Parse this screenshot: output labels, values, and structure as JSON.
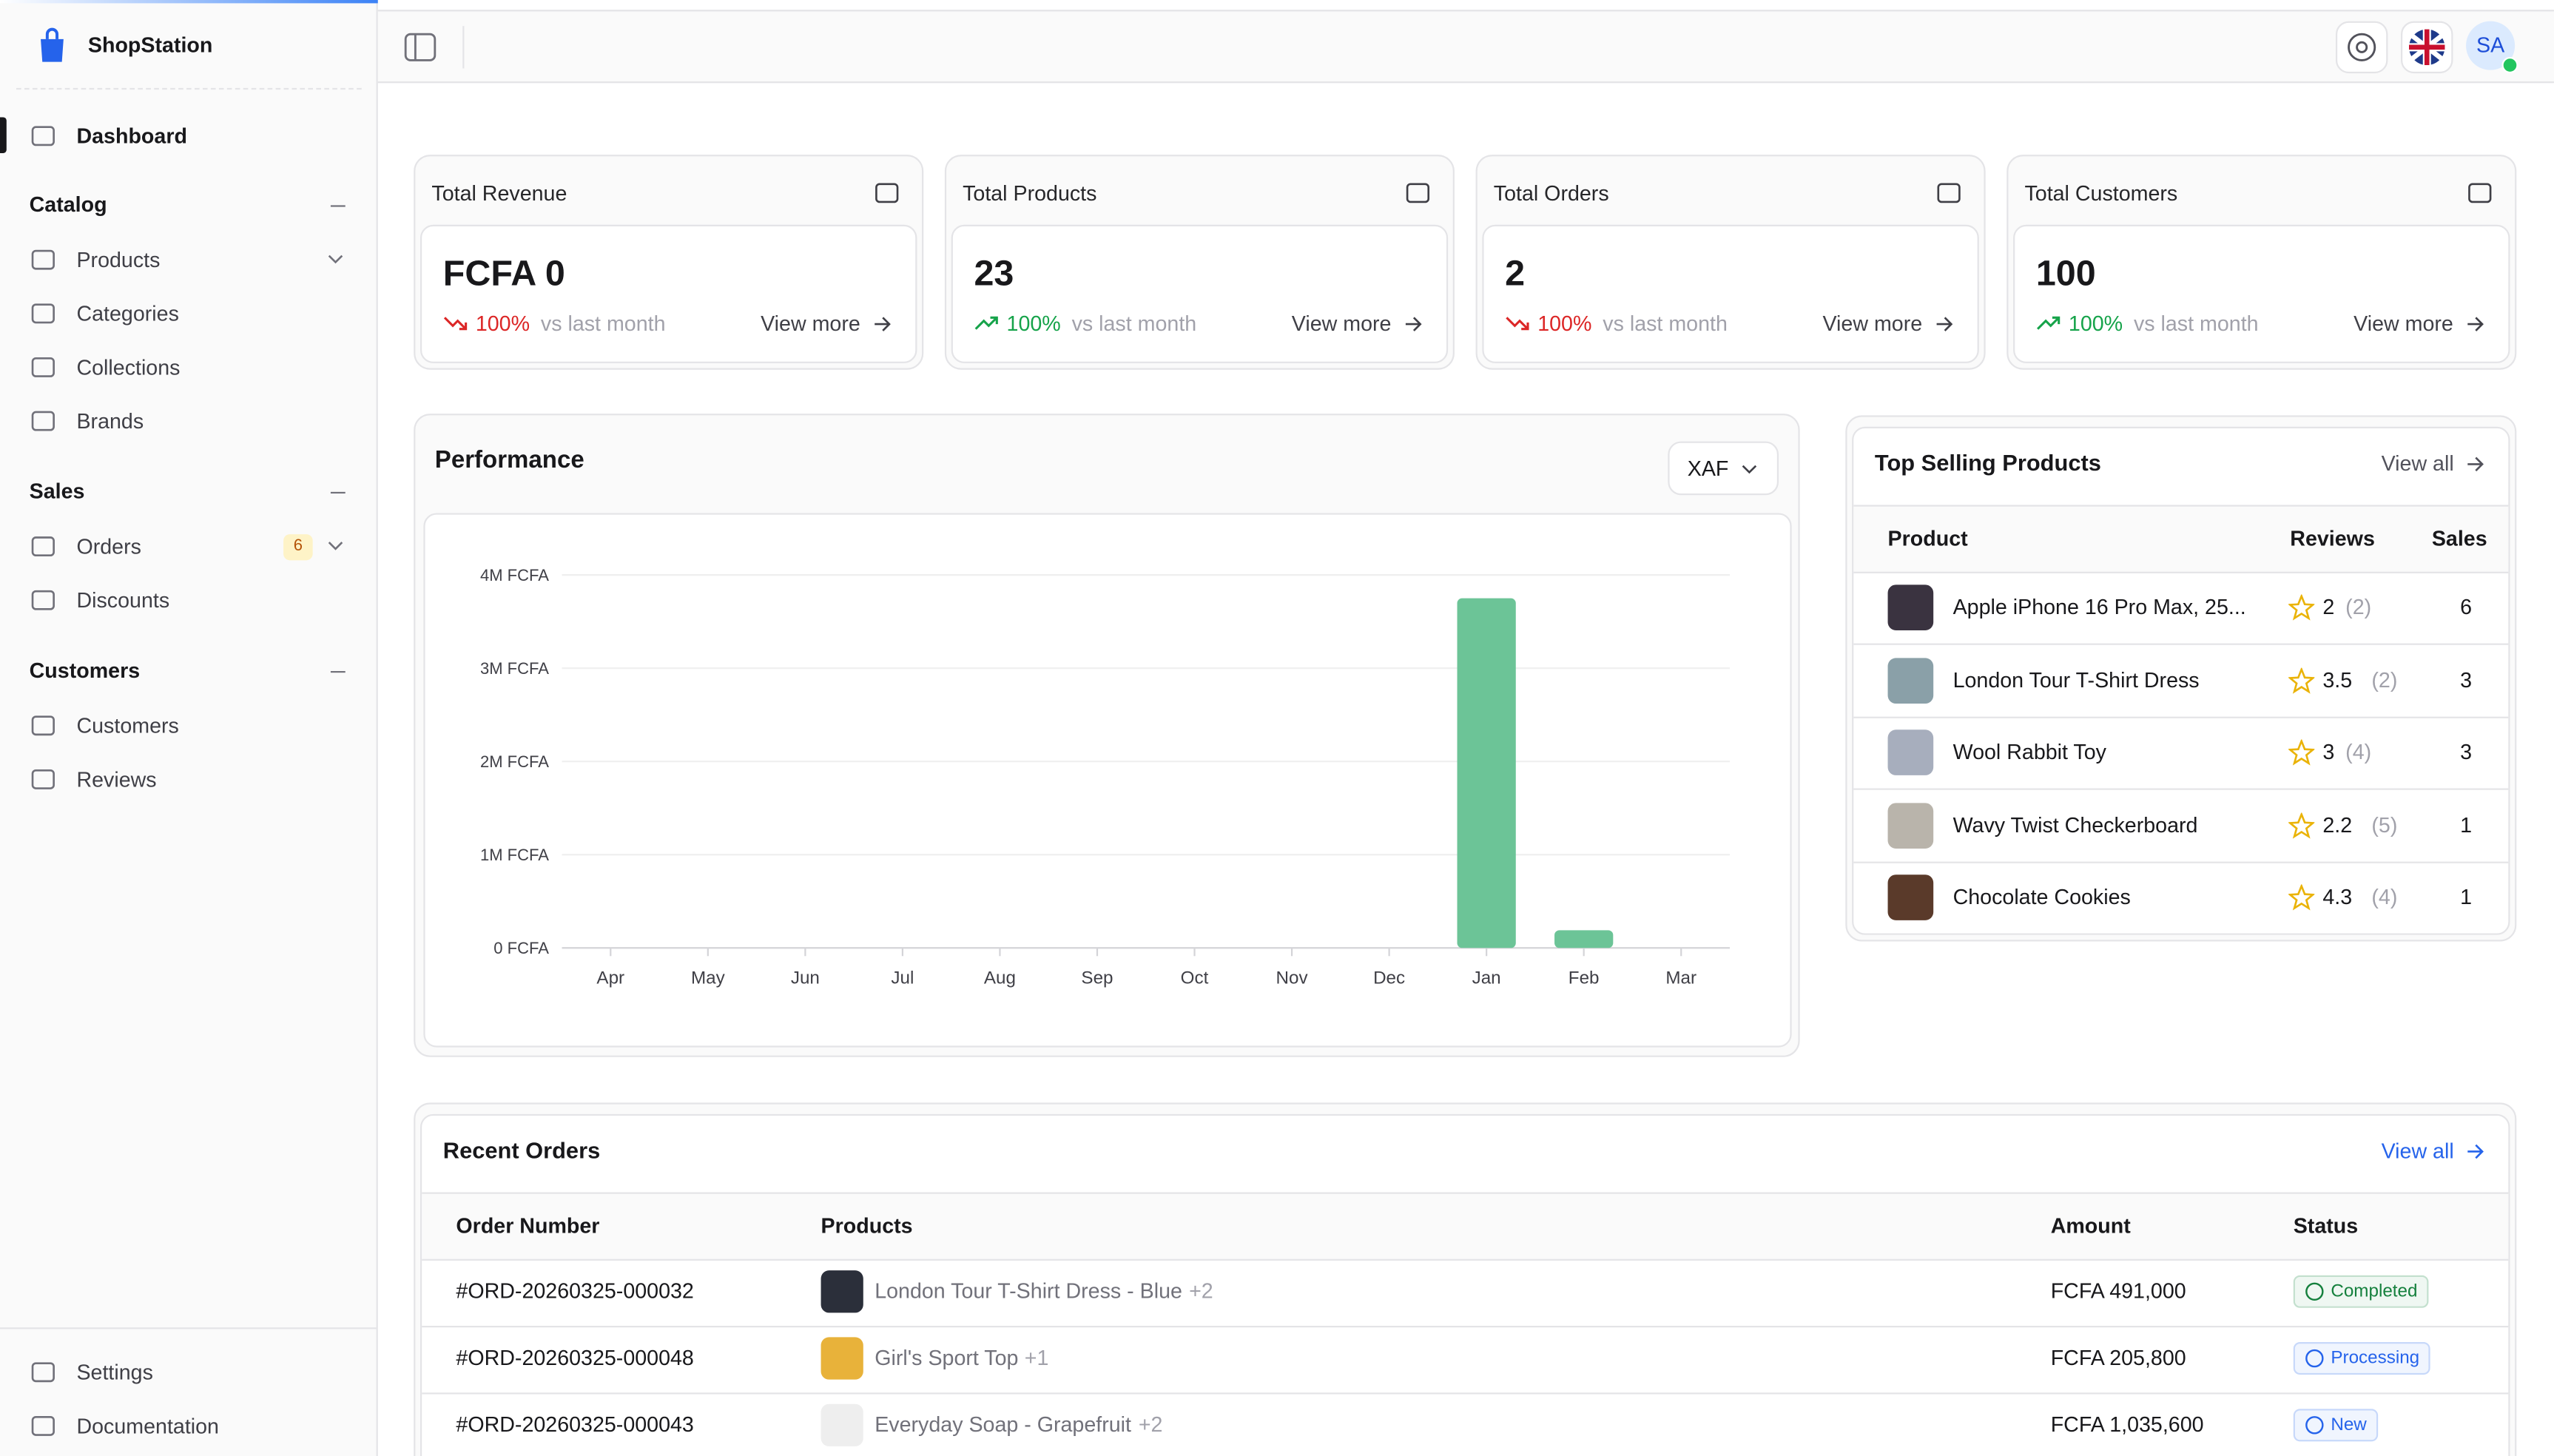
{
  "app": {
    "name": "ShopStation"
  },
  "sidebar": {
    "dashboard": "Dashboard",
    "sections": [
      {
        "title": "Catalog",
        "items": [
          {
            "label": "Products",
            "expandable": true
          },
          {
            "label": "Categories"
          },
          {
            "label": "Collections"
          },
          {
            "label": "Brands"
          }
        ]
      },
      {
        "title": "Sales",
        "items": [
          {
            "label": "Orders",
            "badge": 6,
            "expandable": true
          },
          {
            "label": "Discounts"
          }
        ]
      },
      {
        "title": "Customers",
        "items": [
          {
            "label": "Customers"
          },
          {
            "label": "Reviews"
          }
        ]
      }
    ],
    "footer": [
      "Settings",
      "Documentation"
    ]
  },
  "header": {
    "avatar": "SA"
  },
  "stats": [
    {
      "title": "Total Revenue",
      "value": "FCFA 0",
      "change": "100%",
      "trend": "down",
      "caption": "vs last month",
      "link": "View more"
    },
    {
      "title": "Total Products",
      "value": "23",
      "change": "100%",
      "trend": "up",
      "caption": "vs last month",
      "link": "View more"
    },
    {
      "title": "Total Orders",
      "value": "2",
      "change": "100%",
      "trend": "down",
      "caption": "vs last month",
      "link": "View more"
    },
    {
      "title": "Total Customers",
      "value": "100",
      "change": "100%",
      "trend": "up",
      "caption": "vs last month",
      "link": "View more"
    }
  ],
  "chart_data": {
    "type": "bar",
    "title": "Performance",
    "currency": "XAF",
    "categories": [
      "Apr",
      "May",
      "Jun",
      "Jul",
      "Aug",
      "Sep",
      "Oct",
      "Nov",
      "Dec",
      "Jan",
      "Feb",
      "Mar"
    ],
    "values": [
      0,
      0,
      0,
      0,
      0,
      0,
      0,
      0,
      0,
      3750000,
      190000,
      0
    ],
    "color": "#6cc497",
    "ylim": [
      0,
      4000000
    ],
    "yticks": [
      {
        "value": 0,
        "label": "0 FCFA"
      },
      {
        "value": 1000000,
        "label": "1M FCFA"
      },
      {
        "value": 2000000,
        "label": "2M FCFA"
      },
      {
        "value": 3000000,
        "label": "3M FCFA"
      },
      {
        "value": 4000000,
        "label": "4M FCFA"
      }
    ],
    "grid": true
  },
  "top_selling": {
    "title": "Top Selling Products",
    "link": "View all",
    "columns": [
      "Product",
      "Reviews",
      "Sales"
    ],
    "rows": [
      {
        "name": "Apple iPhone 16 Pro Max, 25...",
        "rating": "2",
        "reviews": "(2)",
        "sales": "6",
        "color": "#3a3340"
      },
      {
        "name": "London Tour T-Shirt Dress",
        "rating": "3.5",
        "reviews": "(2)",
        "sales": "3",
        "color": "#8aa0a8"
      },
      {
        "name": "Wool Rabbit Toy",
        "rating": "3",
        "reviews": "(4)",
        "sales": "3",
        "color": "#a7aebd"
      },
      {
        "name": "Wavy Twist Checkerboard",
        "rating": "2.2",
        "reviews": "(5)",
        "sales": "1",
        "color": "#b9b4ab"
      },
      {
        "name": "Chocolate Cookies",
        "rating": "4.3",
        "reviews": "(4)",
        "sales": "1",
        "color": "#5a3a2a"
      }
    ]
  },
  "recent_orders": {
    "title": "Recent Orders",
    "link": "View all",
    "columns": [
      "Order Number",
      "Products",
      "Amount",
      "Status"
    ],
    "rows": [
      {
        "order": "#ORD-20260325-000032",
        "product": "London Tour T-Shirt Dress - Blue",
        "more": "+2",
        "amount": "FCFA 491,000",
        "status": "Completed",
        "color": "#15803d",
        "thumb": "#2b2f3a"
      },
      {
        "order": "#ORD-20260325-000048",
        "product": "Girl's Sport Top",
        "more": "+1",
        "amount": "FCFA 205,800",
        "status": "Processing",
        "color": "#2563eb",
        "thumb": "#e8b23a"
      },
      {
        "order": "#ORD-20260325-000043",
        "product": "Everyday Soap - Grapefruit",
        "more": "+2",
        "amount": "FCFA 1,035,600",
        "status": "New",
        "color": "#2563eb",
        "thumb": "#eeeeee"
      }
    ]
  }
}
